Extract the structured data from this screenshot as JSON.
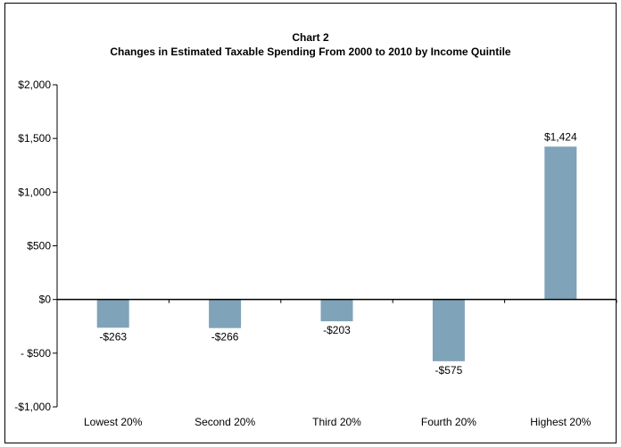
{
  "chart_data": {
    "type": "bar",
    "title": "Chart 2",
    "subtitle": "Changes in Estimated Taxable Spending From 2000 to 2010 by  Income Quintile",
    "categories": [
      "Lowest 20%",
      "Second 20%",
      "Third 20%",
      "Fourth 20%",
      "Highest 20%"
    ],
    "values": [
      -263,
      -266,
      -203,
      -575,
      1424
    ],
    "data_labels": [
      "-$263",
      "-$266",
      "-$203",
      "-$575",
      "$1,424"
    ],
    "ylim": [
      -1000,
      2000
    ],
    "yticks": [
      2000,
      1500,
      1000,
      500,
      0,
      -500,
      -1000
    ],
    "ytick_labels": [
      "$2,000",
      "$1,500",
      "$1,000",
      "$500",
      "$0",
      "- $500",
      "-$1,000"
    ],
    "xlabel": "",
    "ylabel": "",
    "grid": false,
    "legend": "none",
    "bar_color": "#7fa3b8",
    "axis_color": "#000000"
  }
}
